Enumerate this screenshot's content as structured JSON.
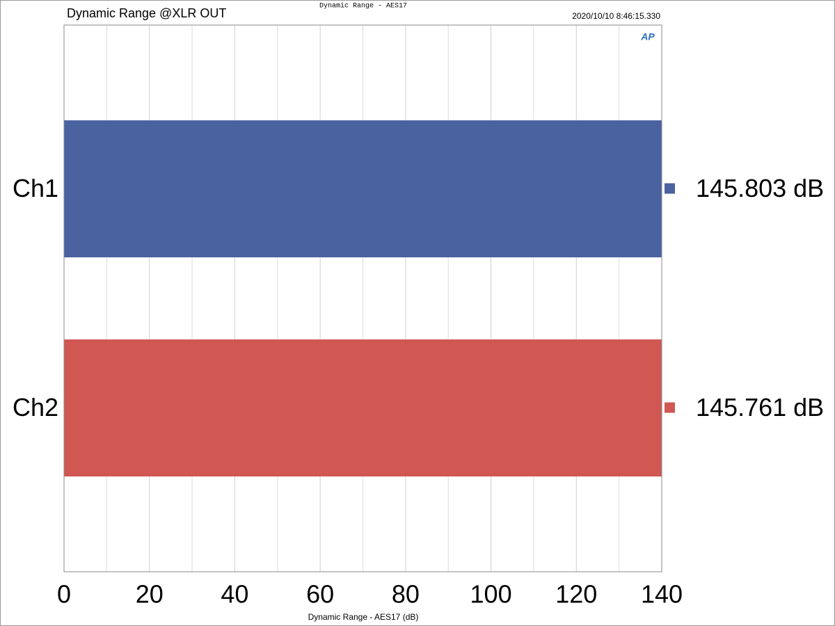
{
  "chart_data": {
    "type": "hbar",
    "title": "Dynamic Range @XLR OUT",
    "subtitle": "Dynamic Range - AES17",
    "timestamp": "2020/10/10 8:46:15.330",
    "logo": "AP",
    "x_label": "Dynamic Range - AES17 (dB)",
    "categories": [
      "Ch1",
      "Ch2"
    ],
    "series": [
      {
        "name": "Dynamic Range - AES17",
        "colors": [
          "#4a63a0",
          "#d05752"
        ],
        "values": [
          145.803,
          145.761
        ],
        "value_labels": [
          "145.803 dB",
          "145.761 dB"
        ]
      }
    ],
    "xlim": [
      0,
      140
    ],
    "xticks": [
      0,
      20,
      40,
      60,
      80,
      100,
      120,
      140
    ],
    "minor_xticks": [
      10,
      30,
      50,
      70,
      90,
      110,
      130
    ],
    "grid": true
  }
}
